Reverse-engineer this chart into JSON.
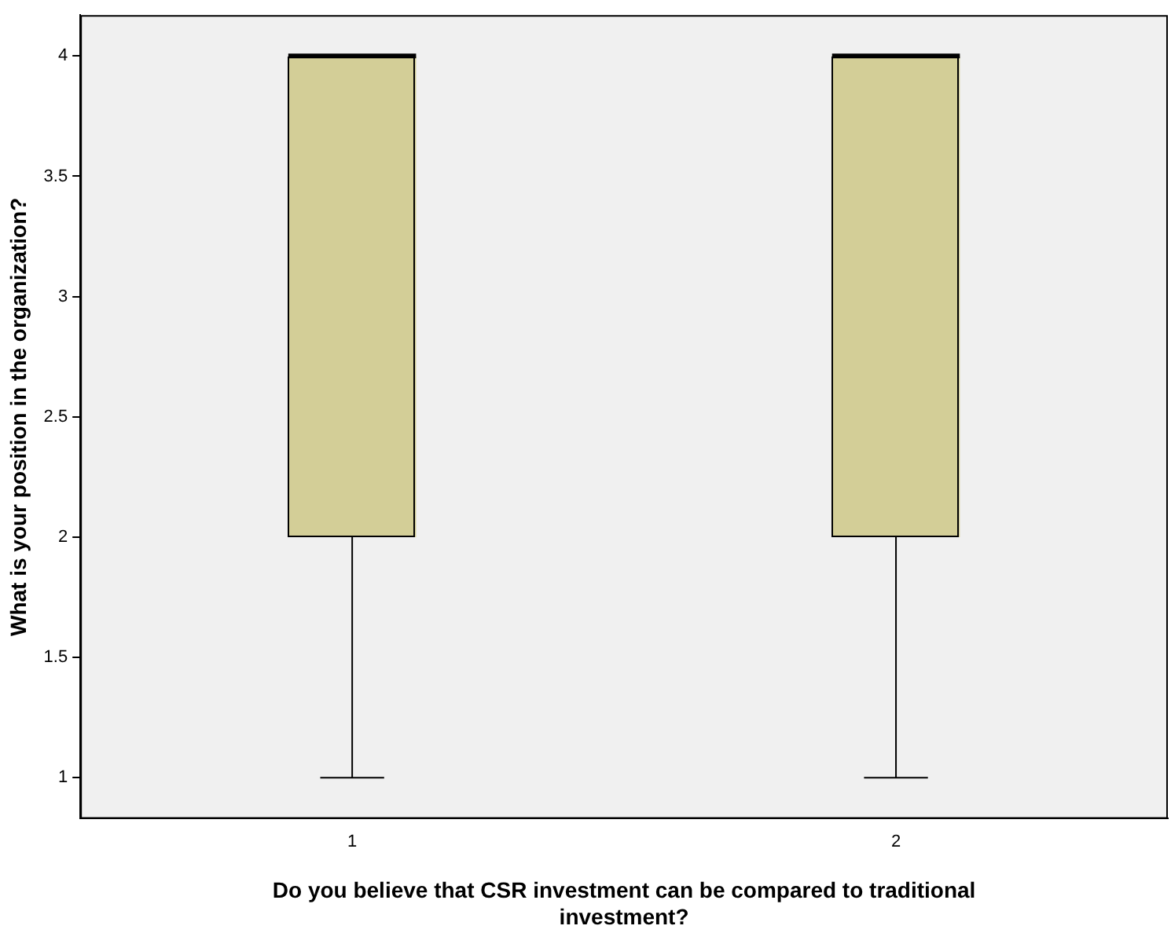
{
  "chart_data": {
    "type": "box",
    "xlabel": "Do you believe that CSR investment can be compared to traditional investment?",
    "ylabel": "What is your position in the organization?",
    "categories": [
      "1",
      "2"
    ],
    "color": "#d3ce97",
    "boxes": [
      {
        "low": 1,
        "q1": 2,
        "median": 4,
        "q3": 4,
        "high": 4
      },
      {
        "low": 1,
        "q1": 2,
        "median": 4,
        "q3": 4,
        "high": 4
      }
    ],
    "ylim": [
      0.83,
      4.17
    ],
    "yticks": [
      1,
      1.5,
      2,
      2.5,
      3,
      3.5,
      4
    ],
    "grid": false,
    "legend": false
  }
}
